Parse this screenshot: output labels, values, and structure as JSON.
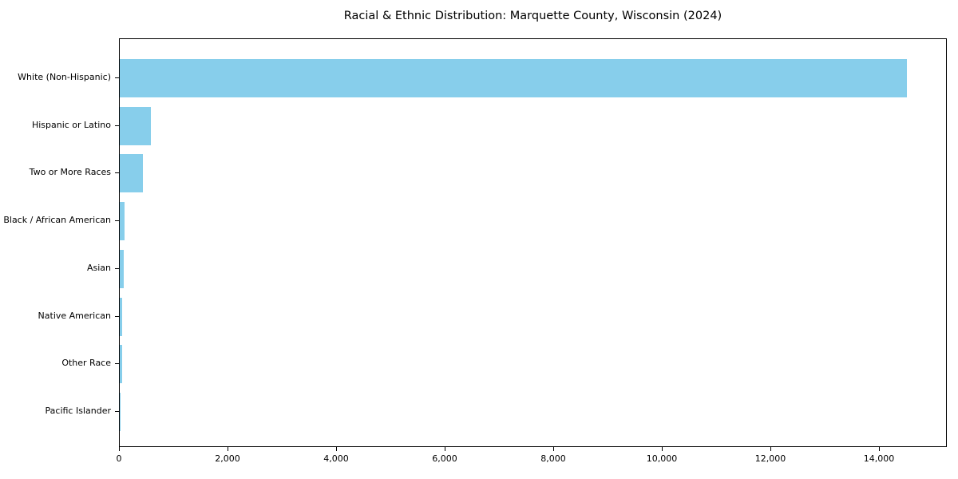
{
  "title": "Racial & Ethnic Distribution: Marquette County, Wisconsin (2024)",
  "colors": {
    "bar": "#87CEEB",
    "spine": "#000000",
    "text": "#000000",
    "background": "#ffffff"
  },
  "chart_data": {
    "type": "bar",
    "orientation": "horizontal",
    "title": "Racial & Ethnic Distribution: Marquette County, Wisconsin (2024)",
    "xlabel": "",
    "ylabel": "",
    "categories": [
      "White (Non-Hispanic)",
      "Hispanic or Latino",
      "Two or More Races",
      "Black / African American",
      "Asian",
      "Native American",
      "Other Race",
      "Pacific Islander"
    ],
    "values": [
      14500,
      580,
      420,
      85,
      70,
      50,
      40,
      5
    ],
    "xlim": [
      0,
      15250
    ],
    "x_ticks": [
      0,
      2000,
      4000,
      6000,
      8000,
      10000,
      12000,
      14000
    ],
    "x_tick_labels": [
      "0",
      "2,000",
      "4,000",
      "6,000",
      "8,000",
      "10,000",
      "12,000",
      "14,000"
    ],
    "bar_color": "#87CEEB",
    "grid": false,
    "legend": null
  }
}
